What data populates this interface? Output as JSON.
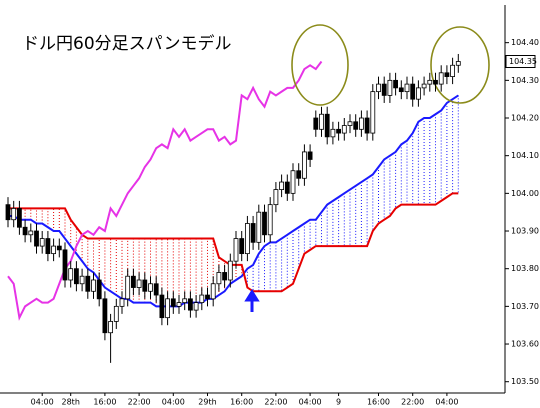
{
  "chart_data": {
    "type": "candlestick",
    "title": "ドル円60分足スパンモデル",
    "ylim": [
      103.47,
      104.5
    ],
    "yticks": [
      {
        "value": 104.4,
        "label": "104.40"
      },
      {
        "value": 104.3,
        "label": "104.30"
      },
      {
        "value": 104.2,
        "label": "104.20"
      },
      {
        "value": 104.1,
        "label": "104.10"
      },
      {
        "value": 104.0,
        "label": "104.00"
      },
      {
        "value": 103.9,
        "label": "103.90"
      },
      {
        "value": 103.8,
        "label": "103.80"
      },
      {
        "value": 103.7,
        "label": "103.70"
      },
      {
        "value": 103.6,
        "label": "103.60"
      },
      {
        "value": 103.5,
        "label": "103.50"
      }
    ],
    "xticks": [
      {
        "value": 6,
        "label": "04:00"
      },
      {
        "value": 11,
        "label": "28th"
      },
      {
        "value": 17,
        "label": "16:00"
      },
      {
        "value": 23,
        "label": "22:00"
      },
      {
        "value": 29,
        "label": "04:00"
      },
      {
        "value": 35,
        "label": "29th"
      },
      {
        "value": 41,
        "label": "16:00"
      },
      {
        "value": 47,
        "label": "22:00"
      },
      {
        "value": 53,
        "label": "04:00"
      },
      {
        "value": 58,
        "label": "9"
      },
      {
        "value": 65,
        "label": "16:00"
      },
      {
        "value": 71,
        "label": "22:00"
      },
      {
        "value": 77,
        "label": "04:00"
      }
    ],
    "last_price": {
      "value": 104.35,
      "label": "104.35"
    },
    "up_color": "#ffffff",
    "down_color": "#000000",
    "cloud": true,
    "open": [
      103.97,
      103.93,
      103.96,
      103.91,
      103.89,
      103.9,
      103.86,
      103.88,
      103.84,
      103.86,
      103.85,
      103.77,
      103.8,
      103.76,
      103.78,
      103.74,
      103.77,
      103.72,
      103.63,
      103.66,
      103.7,
      103.72,
      103.78,
      103.75,
      103.77,
      103.74,
      103.76,
      103.73,
      103.67,
      103.72,
      103.7,
      103.71,
      103.72,
      103.69,
      103.71,
      103.73,
      103.72,
      103.76,
      103.79,
      103.77,
      103.82,
      103.88,
      103.84,
      103.92,
      103.87,
      103.95,
      103.89,
      103.97,
      104.01,
      104.03,
      104.0,
      104.06,
      104.04,
      104.11,
      104.2,
      104.17,
      104.21,
      104.15,
      104.17,
      104.16,
      104.18,
      104.19,
      104.17,
      104.2,
      104.16,
      104.27,
      104.29,
      104.26,
      104.3,
      104.28,
      104.27,
      104.29,
      104.25,
      104.28,
      104.29,
      104.3,
      104.29,
      104.32,
      104.31,
      104.34
    ],
    "high": [
      103.99,
      103.98,
      103.98,
      103.93,
      103.92,
      103.92,
      103.9,
      103.9,
      103.88,
      103.88,
      103.87,
      103.82,
      103.82,
      103.8,
      103.8,
      103.79,
      103.79,
      103.74,
      103.68,
      103.72,
      103.74,
      103.8,
      103.8,
      103.79,
      103.79,
      103.78,
      103.78,
      103.75,
      103.74,
      103.74,
      103.73,
      103.74,
      103.74,
      103.73,
      103.75,
      103.75,
      103.78,
      103.81,
      103.81,
      103.84,
      103.9,
      103.9,
      103.94,
      103.94,
      103.97,
      103.97,
      103.99,
      104.03,
      104.05,
      104.05,
      104.08,
      104.08,
      104.13,
      104.13,
      104.22,
      104.23,
      104.23,
      104.19,
      104.19,
      104.2,
      104.21,
      104.21,
      104.22,
      104.22,
      104.29,
      104.31,
      104.31,
      104.32,
      104.32,
      104.3,
      104.31,
      104.31,
      104.3,
      104.31,
      104.32,
      104.32,
      104.34,
      104.34,
      104.36,
      104.37
    ],
    "low": [
      103.91,
      103.91,
      103.89,
      103.87,
      103.87,
      103.84,
      103.84,
      103.82,
      103.82,
      103.83,
      103.75,
      103.75,
      103.74,
      103.74,
      103.72,
      103.72,
      103.7,
      103.61,
      103.55,
      103.64,
      103.68,
      103.7,
      103.73,
      103.73,
      103.72,
      103.72,
      103.71,
      103.65,
      103.65,
      103.68,
      103.68,
      103.69,
      103.67,
      103.67,
      103.69,
      103.7,
      103.7,
      103.74,
      103.75,
      103.75,
      103.8,
      103.82,
      103.82,
      103.85,
      103.85,
      103.87,
      103.87,
      103.95,
      103.99,
      103.98,
      103.98,
      104.02,
      104.02,
      104.07,
      104.15,
      104.15,
      104.13,
      104.13,
      104.14,
      104.14,
      104.16,
      104.15,
      104.15,
      104.14,
      104.14,
      104.25,
      104.24,
      104.24,
      104.26,
      104.25,
      104.25,
      104.23,
      104.23,
      104.26,
      104.27,
      104.27,
      104.27,
      104.29,
      104.29,
      104.32
    ],
    "close": [
      103.93,
      103.96,
      103.91,
      103.89,
      103.9,
      103.86,
      103.88,
      103.84,
      103.86,
      103.85,
      103.77,
      103.8,
      103.76,
      103.78,
      103.74,
      103.77,
      103.72,
      103.63,
      103.66,
      103.7,
      103.72,
      103.78,
      103.75,
      103.77,
      103.74,
      103.76,
      103.73,
      103.67,
      103.72,
      103.7,
      103.71,
      103.72,
      103.69,
      103.71,
      103.73,
      103.72,
      103.76,
      103.79,
      103.77,
      103.82,
      103.88,
      103.84,
      103.92,
      103.87,
      103.95,
      103.89,
      103.97,
      104.01,
      104.03,
      104.0,
      104.06,
      104.04,
      104.11,
      104.09,
      104.17,
      104.21,
      104.15,
      104.17,
      104.16,
      104.18,
      104.19,
      104.17,
      104.2,
      104.16,
      104.27,
      104.29,
      104.26,
      104.3,
      104.28,
      104.27,
      104.29,
      104.25,
      104.28,
      104.29,
      104.3,
      104.29,
      104.32,
      104.31,
      104.34,
      104.35
    ],
    "lines": [
      {
        "color": "#1a1aff",
        "values": [
          103.94,
          103.94,
          103.93,
          103.93,
          103.93,
          103.92,
          103.92,
          103.91,
          103.9,
          103.9,
          103.88,
          103.86,
          103.84,
          103.82,
          103.8,
          103.79,
          103.77,
          103.75,
          103.74,
          103.73,
          103.72,
          103.72,
          103.71,
          103.71,
          103.71,
          103.71,
          103.7,
          103.7,
          103.7,
          103.7,
          103.7,
          103.71,
          103.71,
          103.71,
          103.71,
          103.72,
          103.72,
          103.73,
          103.74,
          103.76,
          103.77,
          103.78,
          103.8,
          103.81,
          103.84,
          103.86,
          103.87,
          103.87,
          103.88,
          103.89,
          103.9,
          103.91,
          103.92,
          103.93,
          103.93,
          103.95,
          103.97,
          103.98,
          103.99,
          104.0,
          104.01,
          104.02,
          104.03,
          104.04,
          104.05,
          104.07,
          104.09,
          104.1,
          104.11,
          104.13,
          104.14,
          104.16,
          104.19,
          104.2,
          104.2,
          104.21,
          104.22,
          104.24,
          104.25,
          104.26
        ]
      },
      {
        "color": "#e60000",
        "values": [
          103.96,
          103.96,
          103.96,
          103.96,
          103.96,
          103.96,
          103.96,
          103.96,
          103.96,
          103.96,
          103.96,
          103.93,
          103.91,
          103.89,
          103.88,
          103.88,
          103.88,
          103.88,
          103.88,
          103.88,
          103.88,
          103.88,
          103.88,
          103.88,
          103.88,
          103.88,
          103.88,
          103.88,
          103.88,
          103.88,
          103.88,
          103.88,
          103.88,
          103.88,
          103.88,
          103.88,
          103.88,
          103.83,
          103.82,
          103.81,
          103.81,
          103.81,
          103.75,
          103.74,
          103.74,
          103.74,
          103.74,
          103.74,
          103.74,
          103.75,
          103.76,
          103.8,
          103.84,
          103.85,
          103.86,
          103.86,
          103.86,
          103.86,
          103.86,
          103.86,
          103.86,
          103.86,
          103.86,
          103.86,
          103.9,
          103.92,
          103.93,
          103.94,
          103.96,
          103.97,
          103.97,
          103.97,
          103.97,
          103.97,
          103.97,
          103.97,
          103.98,
          103.99,
          104.0,
          104.0
        ]
      },
      {
        "color": "#e633e6",
        "values": [
          103.78,
          103.76,
          103.67,
          103.7,
          103.71,
          103.72,
          103.71,
          103.71,
          103.72,
          103.76,
          103.8,
          103.82,
          103.86,
          103.89,
          103.9,
          103.89,
          103.91,
          103.9,
          103.96,
          103.94,
          103.97,
          104.0,
          104.02,
          104.04,
          104.07,
          104.09,
          104.12,
          104.13,
          104.12,
          104.17,
          104.15,
          104.17,
          104.14,
          104.15,
          104.16,
          104.17,
          104.17,
          104.14,
          104.15,
          104.13,
          104.14,
          104.26,
          104.25,
          104.28,
          104.25,
          104.23,
          104.27,
          104.26,
          104.27,
          104.28,
          104.28,
          104.3,
          104.33,
          104.34,
          104.33,
          104.35,
          null,
          null,
          null,
          null,
          null,
          null,
          null,
          null,
          null,
          null,
          null,
          null,
          null,
          null,
          null,
          null,
          null,
          null,
          null,
          null,
          null,
          null,
          null,
          null
        ]
      }
    ]
  }
}
